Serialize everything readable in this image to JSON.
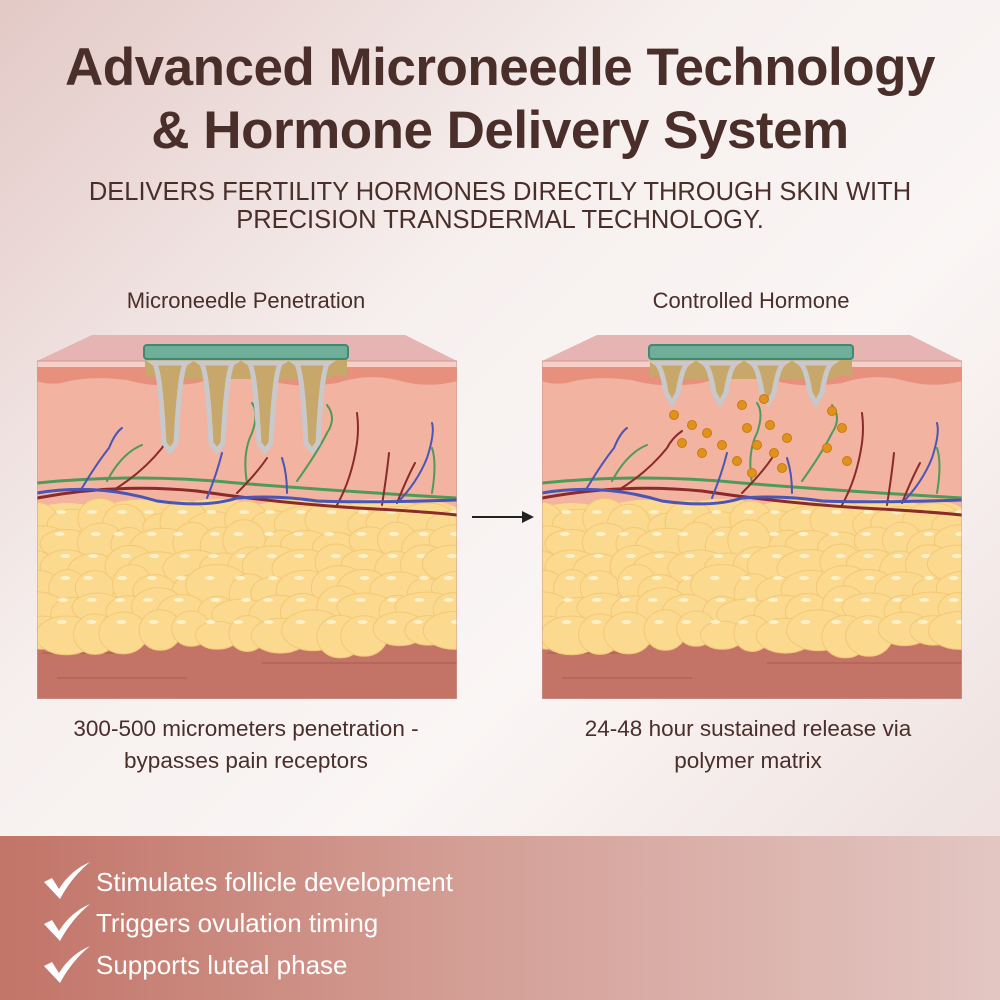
{
  "header": {
    "title_line1": "Advanced Microneedle Technology",
    "title_line2": "& Hormone Delivery System",
    "subtitle_line1": "DELIVERS FERTILITY HORMONES DIRECTLY THROUGH SKIN WITH",
    "subtitle_line2": "PRECISION TRANSDERMAL TECHNOLOGY."
  },
  "panels": [
    {
      "label": "Microneedle Penetration",
      "caption_line1": "300-500 micrometers penetration -",
      "caption_line2": "bypasses pain receptors",
      "shows_hormone_particles": false
    },
    {
      "label": "Controlled Hormone",
      "caption_line1": "24-48 hour sustained release via",
      "caption_line2": "polymer matrix",
      "shows_hormone_particles": true
    }
  ],
  "benefits": [
    {
      "icon": "checkmark-icon",
      "text": "Stimulates follicle development"
    },
    {
      "icon": "checkmark-icon",
      "text": "Triggers ovulation timing"
    },
    {
      "icon": "checkmark-icon",
      "text": "Supports luteal phase"
    }
  ],
  "colors": {
    "text": "#4a2e2a",
    "patch": "#6fae98",
    "epidermis": "#e8907e",
    "dermis": "#f2b3a0",
    "fat": "#fbd98e",
    "muscle": "#c47467",
    "vein": "#4a55b5",
    "artery": "#8a2a2a",
    "nerve": "#4f9a58",
    "hormone": "#e0921c",
    "band": "#c27468"
  }
}
